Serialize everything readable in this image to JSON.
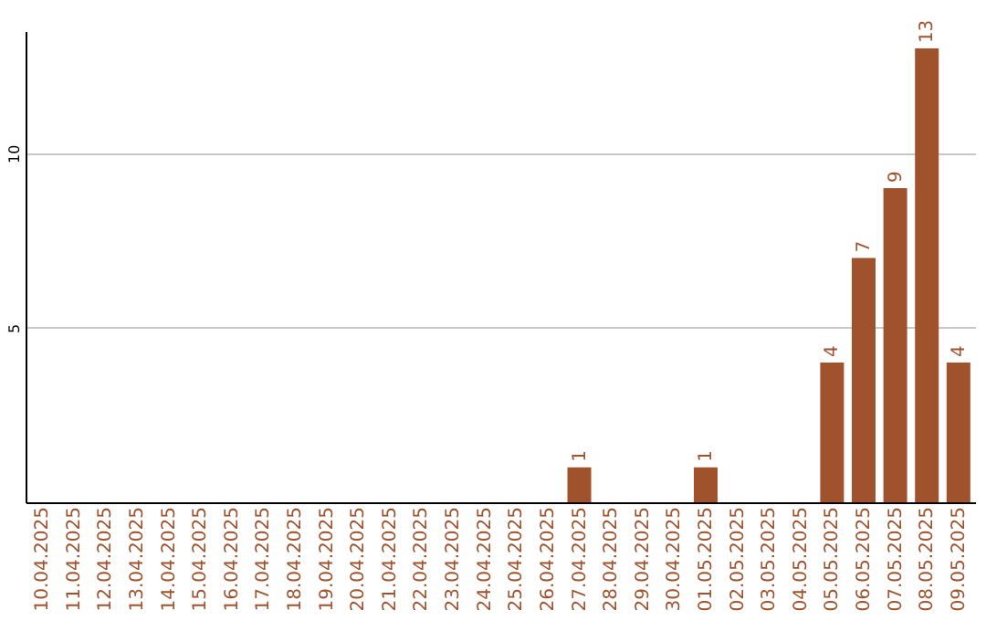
{
  "chart_data": {
    "type": "bar",
    "categories": [
      "10.04.2025",
      "11.04.2025",
      "12.04.2025",
      "13.04.2025",
      "14.04.2025",
      "15.04.2025",
      "16.04.2025",
      "17.04.2025",
      "18.04.2025",
      "19.04.2025",
      "20.04.2025",
      "21.04.2025",
      "22.04.2025",
      "23.04.2025",
      "24.04.2025",
      "25.04.2025",
      "26.04.2025",
      "27.04.2025",
      "28.04.2025",
      "29.04.2025",
      "30.04.2025",
      "01.05.2025",
      "02.05.2025",
      "03.05.2025",
      "04.05.2025",
      "05.05.2025",
      "06.05.2025",
      "07.05.2025",
      "08.05.2025",
      "09.05.2025"
    ],
    "values": [
      0,
      0,
      0,
      0,
      0,
      0,
      0,
      0,
      0,
      0,
      0,
      0,
      0,
      0,
      0,
      0,
      0,
      1,
      0,
      0,
      0,
      1,
      0,
      0,
      0,
      4,
      7,
      9,
      13,
      4
    ],
    "value_labels": [
      null,
      null,
      null,
      null,
      null,
      null,
      null,
      null,
      null,
      null,
      null,
      null,
      null,
      null,
      null,
      null,
      null,
      "1",
      null,
      null,
      null,
      "1",
      null,
      null,
      null,
      "4",
      "7",
      "9",
      "13",
      "4"
    ],
    "color": "#a0522d",
    "ylim": [
      0,
      13.5
    ],
    "yticks": [
      5,
      10
    ],
    "grid": "y"
  }
}
